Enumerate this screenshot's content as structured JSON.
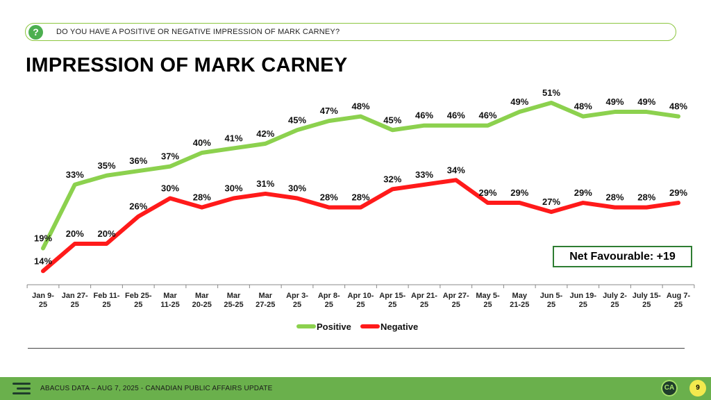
{
  "question": "DO YOU HAVE A POSITIVE OR NEGATIVE IMPRESSION OF MARK CARNEY?",
  "question_icon": "question-circle-icon",
  "title": "IMPRESSION OF MARK CARNEY",
  "net_favourable": "Net Favourable: +19",
  "footer": {
    "source": "ABACUS DATA – AUG 7, 2025 - CANADIAN PUBLIC AFFAIRS UPDATE",
    "logo_text": "CA",
    "page_number": "9"
  },
  "chart_data": {
    "type": "line",
    "title": "IMPRESSION OF MARK CARNEY",
    "categories": [
      [
        "Jan 9-",
        "25"
      ],
      [
        "Jan 27-",
        "25"
      ],
      [
        "Feb 11-",
        "25"
      ],
      [
        "Feb 25-",
        "25"
      ],
      [
        "Mar",
        "11-25"
      ],
      [
        "Mar",
        "20-25"
      ],
      [
        "Mar",
        "25-25"
      ],
      [
        "Mar",
        "27-25"
      ],
      [
        "Apr 3-",
        "25"
      ],
      [
        "Apr 8-",
        "25"
      ],
      [
        "Apr 10-",
        "25"
      ],
      [
        "Apr 15-",
        "25"
      ],
      [
        "Apr 21-",
        "25"
      ],
      [
        "Apr 27-",
        "25"
      ],
      [
        "May 5-",
        "25"
      ],
      [
        "May",
        "21-25"
      ],
      [
        "Jun 5-",
        "25"
      ],
      [
        "Jun 19-",
        "25"
      ],
      [
        "July 2-",
        "25"
      ],
      [
        "July 15-",
        "25"
      ],
      [
        "Aug 7-",
        "25"
      ]
    ],
    "series": [
      {
        "name": "Positive",
        "color": "#8cd14e",
        "values": [
          19,
          33,
          35,
          36,
          37,
          40,
          41,
          42,
          45,
          47,
          48,
          45,
          46,
          46,
          46,
          49,
          51,
          48,
          49,
          49,
          48
        ]
      },
      {
        "name": "Negative",
        "color": "#ff1a1a",
        "values": [
          14,
          20,
          20,
          26,
          30,
          28,
          30,
          31,
          30,
          28,
          28,
          32,
          33,
          34,
          29,
          29,
          27,
          29,
          28,
          28,
          29
        ]
      }
    ],
    "value_suffix": "%",
    "ylim": [
      0,
      60
    ],
    "legend_position": "bottom-center",
    "grid": false
  }
}
